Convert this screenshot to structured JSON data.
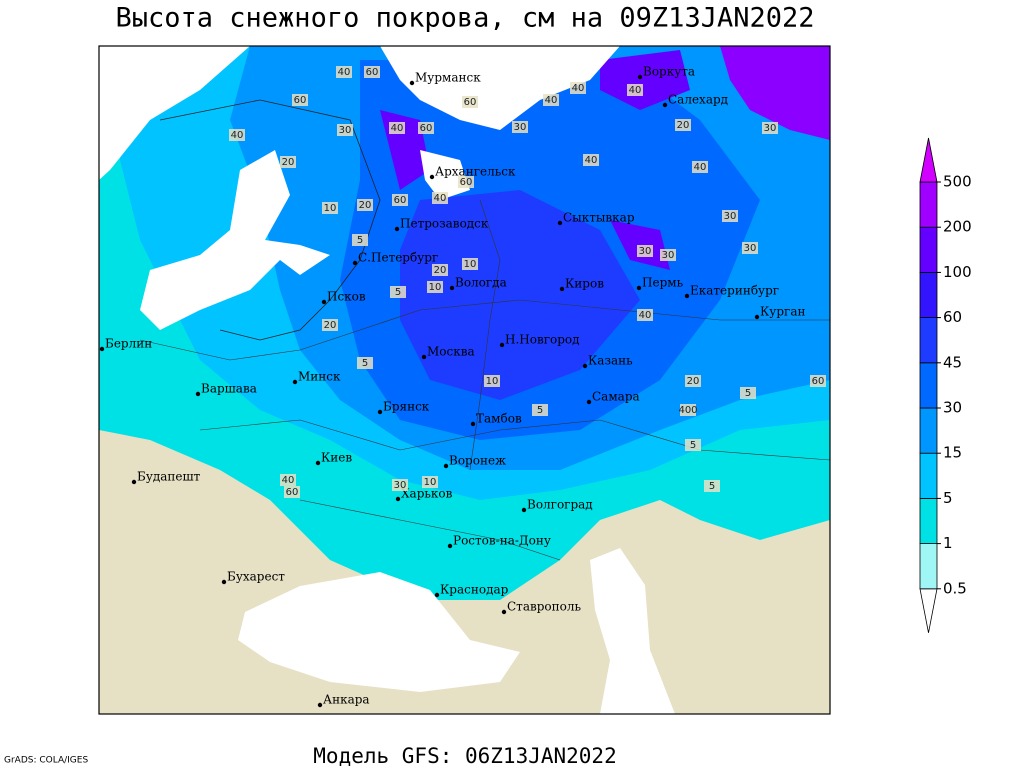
{
  "title": "Высота снежного покрова, см на 09Z13JAN2022",
  "model_label": "Модель GFS: 06Z13JAN2022",
  "credit": "GrADS: COLA/IGES",
  "colorbar": {
    "levels": [
      0.5,
      1,
      5,
      15,
      30,
      45,
      60,
      100,
      200,
      500
    ],
    "colors": [
      "#ffffff",
      "#a0f5f5",
      "#00e1e6",
      "#00c3ff",
      "#0096ff",
      "#0069ff",
      "#1e3cff",
      "#3214ff",
      "#6400ff",
      "#a000ff",
      "#d200ff"
    ]
  },
  "cities": [
    "Мурманск",
    "Воркута",
    "Салехард",
    "Архангельск",
    "Сыктывкар",
    "Петрозаводск",
    "С.Петербург",
    "Вологда",
    "Киров",
    "Пермь",
    "Екатеринбург",
    "Курган",
    "Псков",
    "Берлин",
    "Н.Новгород",
    "Москва",
    "Казань",
    "Минск",
    "Варшава",
    "Самара",
    "Брянск",
    "Тамбов",
    "Киев",
    "Воронеж",
    "Будапешт",
    "Харьков",
    "Волгоград",
    "Ростов-на-Дону",
    "Бухарест",
    "Краснодар",
    "Ставрополь",
    "Анкара"
  ],
  "contour_labels": [
    40,
    60,
    60,
    30,
    40,
    40,
    60,
    60,
    40,
    40,
    30,
    20,
    10,
    20,
    60,
    40,
    60,
    40,
    40,
    30,
    30,
    20,
    30,
    40,
    30,
    30,
    20,
    10,
    5,
    10,
    5,
    40,
    20,
    5,
    10,
    5,
    20,
    60,
    5,
    400,
    5,
    5,
    30,
    10,
    40,
    60
  ]
}
